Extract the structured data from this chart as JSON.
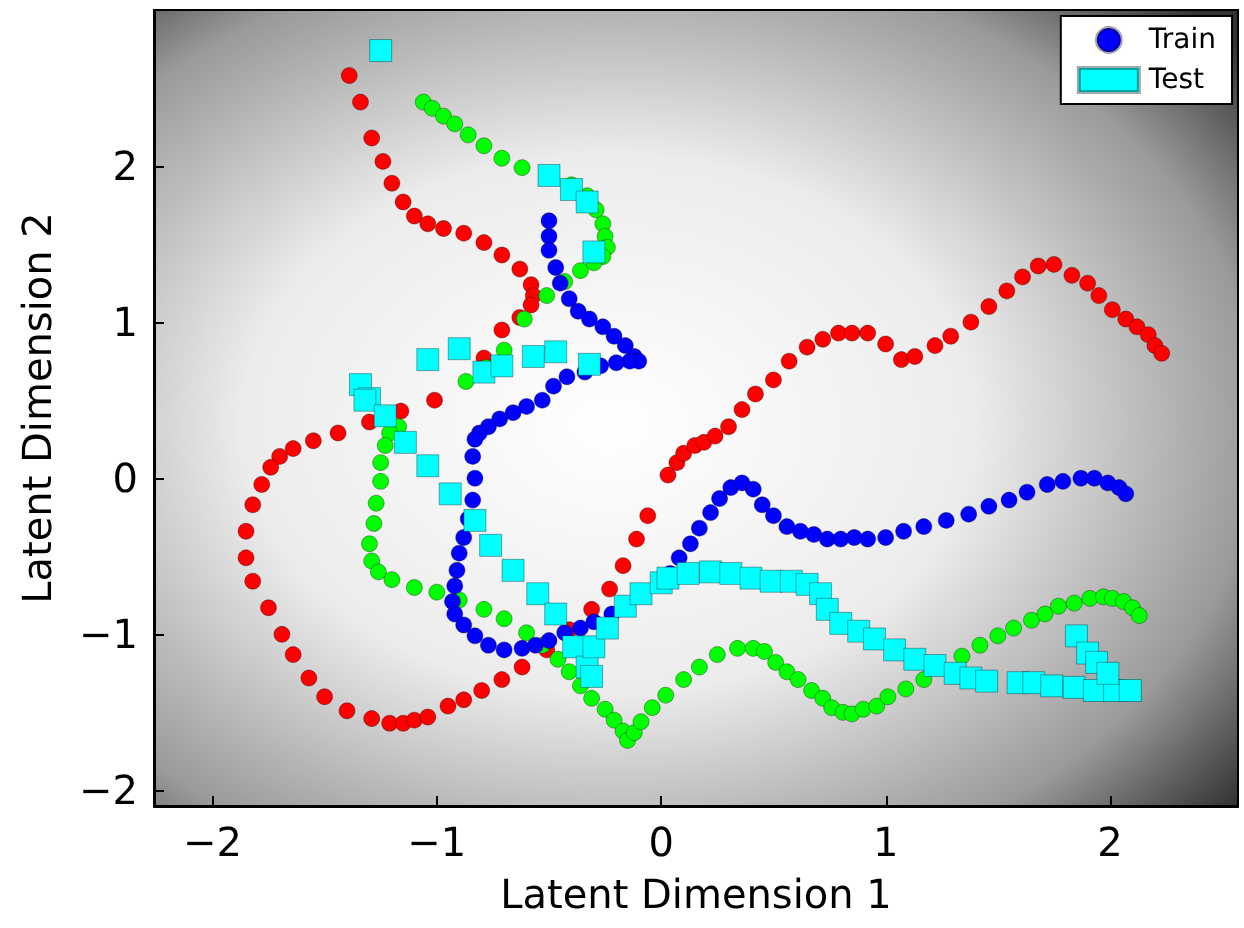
{
  "chart_data": {
    "type": "scatter",
    "xlabel": "Latent Dimension 1",
    "ylabel": "Latent Dimension 2",
    "xlim": [
      -2.26,
      2.57
    ],
    "ylim": [
      -2.1,
      3.0
    ],
    "xticks": [
      -2,
      -1,
      0,
      1,
      2
    ],
    "yticks": [
      -2,
      -1,
      0,
      1,
      2
    ],
    "grid": false,
    "legend": "top right",
    "series": [
      {
        "color": "#ff0000",
        "marker": "circle",
        "x": [
          -1.39,
          -1.34,
          -1.29,
          -1.24,
          -1.2,
          -1.15,
          -1.1,
          -1.04,
          -0.97,
          -0.88,
          -0.79,
          -0.71,
          -0.63,
          -0.58,
          -0.57,
          -0.58,
          -0.63,
          -0.71,
          -0.79,
          -1.01,
          -1.16,
          -1.3,
          -1.44,
          -1.55,
          -1.64,
          -1.7,
          -1.74,
          -1.78,
          -1.82,
          -1.85,
          -1.85,
          -1.82,
          -1.75,
          -1.69,
          -1.64,
          -1.57,
          -1.5,
          -1.4,
          -1.29,
          -1.21,
          -1.15,
          -1.1,
          -1.04,
          -0.95,
          -0.88,
          -0.8,
          -0.71,
          -0.62,
          -0.51,
          -0.41,
          -0.31,
          -0.23,
          -0.17,
          -0.11,
          -0.06,
          0.03,
          0.07,
          0.1,
          0.15,
          0.19,
          0.24,
          0.3,
          0.36,
          0.42,
          0.5,
          0.57,
          0.65,
          0.72,
          0.79,
          0.85,
          0.92,
          1.0,
          1.07,
          1.13,
          1.22,
          1.29,
          1.38,
          1.46,
          1.54,
          1.61,
          1.68,
          1.75,
          1.83,
          1.9,
          1.95,
          2.01,
          2.07,
          2.12,
          2.17,
          2.2,
          2.23
        ],
        "values": [
          2.58,
          2.41,
          2.18,
          2.03,
          1.89,
          1.77,
          1.68,
          1.63,
          1.6,
          1.57,
          1.51,
          1.43,
          1.34,
          1.24,
          1.17,
          1.11,
          1.03,
          0.95,
          0.77,
          0.5,
          0.43,
          0.36,
          0.29,
          0.24,
          0.19,
          0.14,
          0.07,
          -0.04,
          -0.17,
          -0.34,
          -0.51,
          -0.66,
          -0.83,
          -1.0,
          -1.13,
          -1.28,
          -1.4,
          -1.49,
          -1.54,
          -1.57,
          -1.57,
          -1.55,
          -1.53,
          -1.46,
          -1.42,
          -1.36,
          -1.29,
          -1.21,
          -1.1,
          -0.97,
          -0.84,
          -0.71,
          -0.56,
          -0.39,
          -0.24,
          0.02,
          0.1,
          0.16,
          0.21,
          0.23,
          0.27,
          0.33,
          0.44,
          0.54,
          0.63,
          0.75,
          0.84,
          0.89,
          0.93,
          0.93,
          0.93,
          0.86,
          0.76,
          0.78,
          0.85,
          0.91,
          1.0,
          1.1,
          1.2,
          1.29,
          1.36,
          1.37,
          1.3,
          1.25,
          1.17,
          1.08,
          1.02,
          0.97,
          0.92,
          0.85,
          0.8
        ]
      },
      {
        "color": "#00ff00",
        "marker": "circle",
        "x": [
          -1.06,
          -1.02,
          -0.97,
          -0.92,
          -0.86,
          -0.79,
          -0.71,
          -0.62,
          -0.4,
          -0.33,
          -0.29,
          -0.26,
          -0.25,
          -0.24,
          -0.26,
          -0.3,
          -0.36,
          -0.43,
          -0.51,
          -0.61,
          -0.7,
          -0.78,
          -0.87,
          -1.17,
          -1.21,
          -1.23,
          -1.25,
          -1.25,
          -1.27,
          -1.28,
          -1.3,
          -1.29,
          -1.26,
          -1.2,
          -1.1,
          -1.0,
          -0.9,
          -0.79,
          -0.7,
          -0.6,
          -0.53,
          -0.46,
          -0.41,
          -0.36,
          -0.31,
          -0.25,
          -0.21,
          -0.17,
          -0.15,
          -0.12,
          -0.09,
          -0.04,
          0.02,
          0.1,
          0.17,
          0.25,
          0.34,
          0.41,
          0.46,
          0.51,
          0.56,
          0.61,
          0.67,
          0.72,
          0.76,
          0.81,
          0.85,
          0.9,
          0.96,
          1.01,
          1.09,
          1.17,
          1.34,
          1.42,
          1.5,
          1.57,
          1.65,
          1.71,
          1.77,
          1.84,
          1.91,
          1.97,
          2.01,
          2.06,
          2.1,
          2.13
        ],
        "values": [
          2.41,
          2.37,
          2.32,
          2.27,
          2.2,
          2.13,
          2.05,
          1.99,
          1.88,
          1.81,
          1.72,
          1.63,
          1.55,
          1.48,
          1.42,
          1.38,
          1.33,
          1.26,
          1.17,
          1.02,
          0.82,
          0.71,
          0.62,
          0.33,
          0.29,
          0.21,
          0.1,
          -0.02,
          -0.16,
          -0.29,
          -0.42,
          -0.53,
          -0.6,
          -0.65,
          -0.7,
          -0.73,
          -0.78,
          -0.84,
          -0.9,
          -0.99,
          -1.07,
          -1.16,
          -1.24,
          -1.33,
          -1.41,
          -1.48,
          -1.55,
          -1.62,
          -1.68,
          -1.63,
          -1.56,
          -1.47,
          -1.39,
          -1.29,
          -1.21,
          -1.13,
          -1.09,
          -1.09,
          -1.11,
          -1.18,
          -1.24,
          -1.29,
          -1.36,
          -1.41,
          -1.47,
          -1.5,
          -1.51,
          -1.48,
          -1.46,
          -1.4,
          -1.35,
          -1.29,
          -1.14,
          -1.07,
          -1.01,
          -0.96,
          -0.91,
          -0.87,
          -0.82,
          -0.8,
          -0.77,
          -0.76,
          -0.77,
          -0.79,
          -0.83,
          -0.88
        ]
      },
      {
        "name": "Train",
        "color": "#0000ff",
        "marker": "circle",
        "x": [
          -0.5,
          -0.5,
          -0.5,
          -0.47,
          -0.45,
          -0.41,
          -0.37,
          -0.32,
          -0.26,
          -0.21,
          -0.16,
          -0.12,
          -0.1,
          -0.14,
          -0.2,
          -0.27,
          -0.34,
          -0.42,
          -0.48,
          -0.53,
          -0.6,
          -0.66,
          -0.72,
          -0.77,
          -0.81,
          -0.83,
          -0.84,
          -0.83,
          -0.84,
          -0.86,
          -0.88,
          -0.9,
          -0.91,
          -0.92,
          -0.93,
          -0.92,
          -0.88,
          -0.83,
          -0.77,
          -0.7,
          -0.62,
          -0.56,
          -0.5,
          -0.43,
          -0.36,
          -0.3,
          -0.22,
          0.04,
          0.08,
          0.13,
          0.17,
          0.22,
          0.26,
          0.31,
          0.36,
          0.41,
          0.45,
          0.5,
          0.56,
          0.62,
          0.68,
          0.74,
          0.8,
          0.86,
          0.92,
          1.0,
          1.08,
          1.17,
          1.27,
          1.37,
          1.46,
          1.55,
          1.63,
          1.72,
          1.79,
          1.87,
          1.93,
          1.99,
          2.04,
          2.07
        ],
        "values": [
          1.65,
          1.55,
          1.46,
          1.35,
          1.25,
          1.15,
          1.07,
          1.02,
          0.97,
          0.91,
          0.85,
          0.78,
          0.75,
          0.75,
          0.74,
          0.72,
          0.68,
          0.65,
          0.59,
          0.5,
          0.46,
          0.42,
          0.38,
          0.33,
          0.29,
          0.25,
          0.14,
          0.0,
          -0.14,
          -0.26,
          -0.38,
          -0.48,
          -0.59,
          -0.69,
          -0.79,
          -0.87,
          -0.94,
          -1.01,
          -1.07,
          -1.1,
          -1.09,
          -1.07,
          -1.04,
          -0.99,
          -0.96,
          -0.92,
          -0.87,
          -0.61,
          -0.51,
          -0.42,
          -0.32,
          -0.22,
          -0.13,
          -0.06,
          -0.03,
          -0.07,
          -0.17,
          -0.24,
          -0.31,
          -0.34,
          -0.36,
          -0.39,
          -0.39,
          -0.38,
          -0.39,
          -0.38,
          -0.34,
          -0.31,
          -0.27,
          -0.23,
          -0.18,
          -0.14,
          -0.09,
          -0.04,
          -0.02,
          0.0,
          0.0,
          -0.03,
          -0.06,
          -0.1
        ]
      },
      {
        "name": "Test",
        "color": "#00ffff",
        "marker": "square",
        "x": [
          -1.25,
          -0.5,
          -0.4,
          -0.33,
          -0.3,
          -1.04,
          -0.9,
          -0.79,
          -0.71,
          -0.57,
          -0.47,
          -0.32,
          -1.34,
          -1.3,
          -1.32,
          -1.23,
          -1.14,
          -1.04,
          -0.94,
          -0.83,
          -0.76,
          -0.66,
          -0.55,
          -0.47,
          -0.39,
          -0.33,
          -0.31,
          -0.3,
          -0.24,
          -0.16,
          -0.09,
          0.0,
          0.03,
          0.12,
          0.22,
          0.31,
          0.4,
          0.49,
          0.58,
          0.65,
          0.71,
          0.74,
          0.8,
          0.88,
          0.95,
          1.04,
          1.13,
          1.22,
          1.31,
          1.38,
          1.45,
          1.59,
          1.66,
          1.74,
          1.84,
          1.93,
          2.02,
          2.09,
          1.85,
          1.9,
          1.94,
          1.99
        ],
        "values": [
          2.74,
          1.94,
          1.85,
          1.77,
          1.45,
          0.76,
          0.83,
          0.68,
          0.72,
          0.78,
          0.81,
          0.73,
          0.6,
          0.51,
          0.5,
          0.4,
          0.23,
          0.08,
          -0.1,
          -0.27,
          -0.43,
          -0.59,
          -0.74,
          -0.87,
          -1.08,
          -1.21,
          -1.27,
          -1.08,
          -0.96,
          -0.82,
          -0.74,
          -0.67,
          -0.64,
          -0.61,
          -0.6,
          -0.61,
          -0.64,
          -0.66,
          -0.66,
          -0.68,
          -0.74,
          -0.84,
          -0.93,
          -0.98,
          -1.03,
          -1.1,
          -1.16,
          -1.2,
          -1.25,
          -1.28,
          -1.3,
          -1.31,
          -1.31,
          -1.33,
          -1.34,
          -1.36,
          -1.36,
          -1.36,
          -1.01,
          -1.12,
          -1.18,
          -1.25
        ]
      }
    ]
  }
}
